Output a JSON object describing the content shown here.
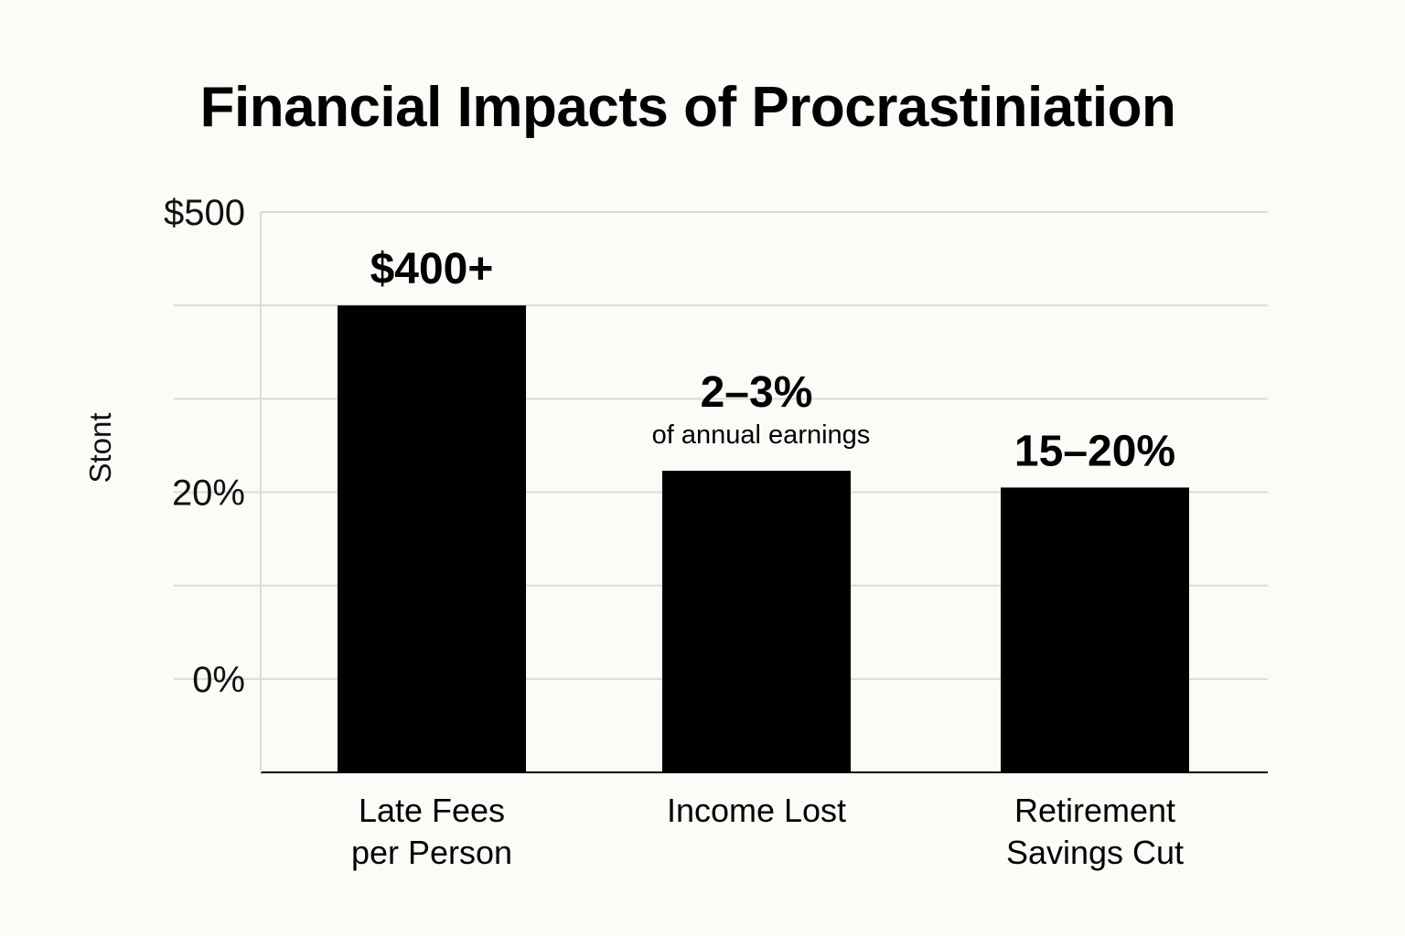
{
  "chart_data": {
    "type": "bar",
    "title": "Financial Impacts of Procrastiniation",
    "ylabel": "Stont",
    "yticks": [
      "$500",
      "20%",
      "0%"
    ],
    "grid": true,
    "categories": [
      [
        "Late Fees",
        "per Person"
      ],
      [
        "Income Lost"
      ],
      [
        "Retirement",
        "Savings Cut"
      ]
    ],
    "values": [
      400,
      223,
      205
    ],
    "ylim": [
      -100,
      500
    ],
    "value_labels": [
      "$400+",
      "2–3%",
      "15–20%"
    ],
    "value_sublabels": [
      "",
      "of annual earnings",
      ""
    ],
    "colors": {
      "bar": "#000000",
      "grid": "#dcdcd6",
      "axis": "#000000"
    }
  }
}
